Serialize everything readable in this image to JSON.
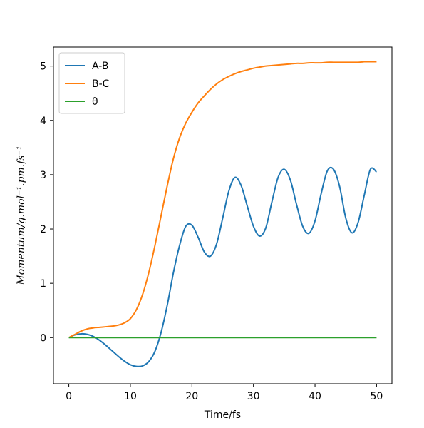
{
  "chart_data": {
    "type": "line",
    "title": "",
    "xlabel": "Time/fs",
    "ylabel": "Momentum/g.mol⁻¹.pm.fs⁻¹",
    "xlim": [
      -2.5,
      52.5
    ],
    "ylim": [
      -0.85,
      5.35
    ],
    "xticks": [
      0,
      10,
      20,
      30,
      40,
      50
    ],
    "yticks": [
      0,
      1,
      2,
      3,
      4,
      5
    ],
    "grid": false,
    "legend_position": "top-left",
    "series": [
      {
        "name": "A-B",
        "color": "#1f77b4",
        "x": [
          0,
          1,
          2,
          3,
          4,
          5,
          6,
          7,
          8,
          9,
          10,
          11,
          12,
          13,
          14,
          15,
          16,
          17,
          18,
          19,
          20,
          21,
          22,
          23,
          24,
          25,
          26,
          27,
          28,
          29,
          30,
          31,
          32,
          33,
          34,
          35,
          36,
          37,
          38,
          39,
          40,
          41,
          42,
          43,
          44,
          45,
          46,
          47,
          48,
          49,
          50
        ],
        "y": [
          0.0,
          0.05,
          0.07,
          0.06,
          0.02,
          -0.05,
          -0.14,
          -0.24,
          -0.34,
          -0.43,
          -0.5,
          -0.53,
          -0.52,
          -0.44,
          -0.25,
          0.1,
          0.6,
          1.2,
          1.7,
          2.05,
          2.07,
          1.85,
          1.58,
          1.5,
          1.72,
          2.2,
          2.7,
          2.95,
          2.8,
          2.42,
          2.05,
          1.87,
          2.02,
          2.5,
          2.95,
          3.1,
          2.9,
          2.45,
          2.05,
          1.92,
          2.15,
          2.65,
          3.07,
          3.1,
          2.78,
          2.2,
          1.93,
          2.12,
          2.62,
          3.1,
          3.05
        ]
      },
      {
        "name": "B-C",
        "color": "#ff7f0e",
        "x": [
          0,
          1,
          2,
          3,
          4,
          5,
          6,
          7,
          8,
          9,
          10,
          11,
          12,
          13,
          14,
          15,
          16,
          17,
          18,
          19,
          20,
          21,
          22,
          23,
          24,
          25,
          26,
          27,
          28,
          29,
          30,
          31,
          32,
          33,
          34,
          35,
          36,
          37,
          38,
          39,
          40,
          41,
          42,
          43,
          44,
          45,
          46,
          47,
          48,
          49,
          50
        ],
        "y": [
          0.0,
          0.06,
          0.12,
          0.16,
          0.18,
          0.19,
          0.2,
          0.21,
          0.23,
          0.27,
          0.35,
          0.52,
          0.8,
          1.2,
          1.7,
          2.25,
          2.8,
          3.3,
          3.68,
          3.95,
          4.15,
          4.32,
          4.45,
          4.57,
          4.67,
          4.75,
          4.81,
          4.86,
          4.9,
          4.93,
          4.96,
          4.98,
          5.0,
          5.01,
          5.02,
          5.03,
          5.04,
          5.05,
          5.05,
          5.06,
          5.06,
          5.06,
          5.07,
          5.07,
          5.07,
          5.07,
          5.07,
          5.07,
          5.08,
          5.08,
          5.08
        ]
      },
      {
        "name": "θ",
        "color": "#2ca02c",
        "x": [
          0,
          50
        ],
        "y": [
          0.0,
          0.0
        ]
      }
    ]
  }
}
